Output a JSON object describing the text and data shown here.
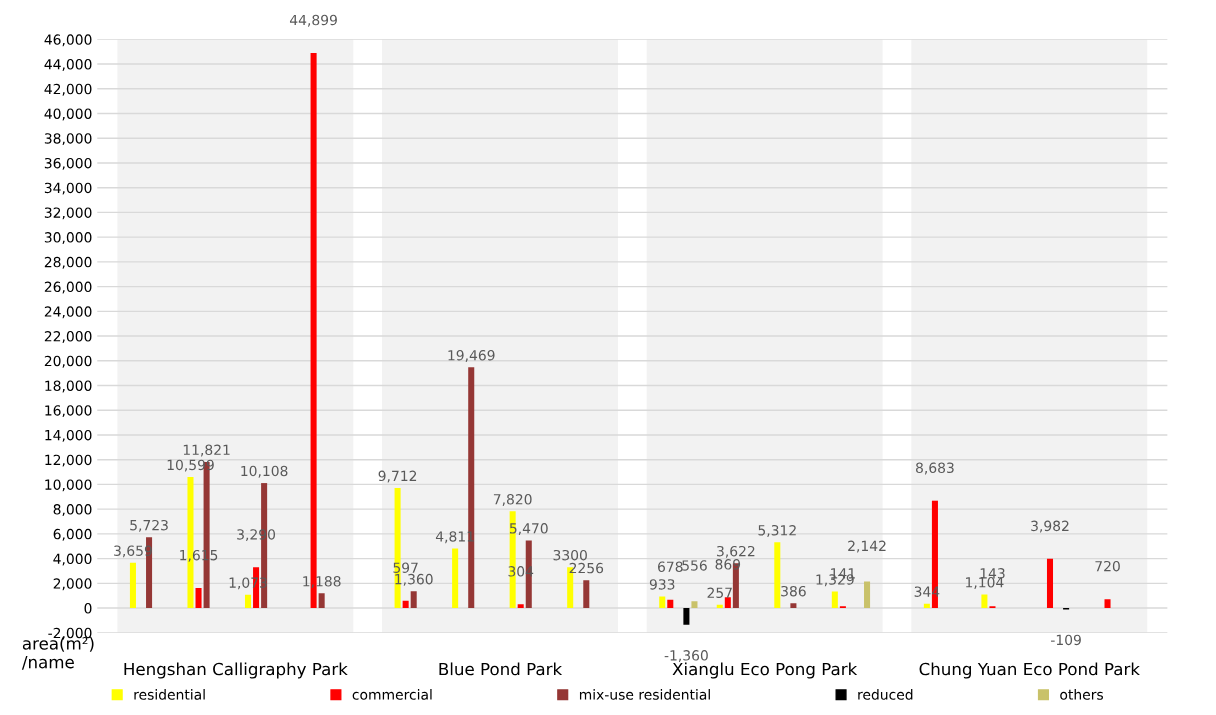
{
  "chart_data": {
    "type": "bar",
    "categories": [
      null,
      null,
      null,
      null,
      null,
      null,
      null,
      null,
      null,
      null,
      null,
      null,
      null,
      null,
      null,
      null
    ],
    "ylabel": "area(m²)\n/name",
    "ylim": [
      -2000,
      46000
    ],
    "yticks": [
      {
        "value": -2000,
        "label": "-2,000"
      },
      0,
      {
        "value": 2000,
        "label": "2,000"
      },
      {
        "value": 4000,
        "label": "4,000"
      },
      {
        "value": 6000,
        "label": "6,000"
      },
      {
        "value": 8000,
        "label": "8,000"
      },
      {
        "value": 10000,
        "label": "10,000"
      },
      {
        "value": 12000,
        "label": "12,000"
      },
      {
        "value": 14000,
        "label": "14,000"
      },
      {
        "value": 16000,
        "label": "16,000"
      },
      {
        "value": 18000,
        "label": "18,000"
      },
      {
        "value": 20000,
        "label": "20,000"
      },
      {
        "value": 22000,
        "label": "22,000"
      },
      {
        "value": 24000,
        "label": "24,000"
      },
      {
        "value": 26000,
        "label": "26,000"
      },
      {
        "value": 28000,
        "label": "28,000"
      },
      {
        "value": 30000,
        "label": "30,000"
      },
      {
        "value": 32000,
        "label": "32,000"
      },
      {
        "value": 34000,
        "label": "34,000"
      },
      {
        "value": 36000,
        "label": "36,000"
      },
      {
        "value": 38000,
        "label": "38,000"
      },
      {
        "value": 40000,
        "label": "40,000"
      },
      {
        "value": 42000,
        "label": "42,000"
      },
      {
        "value": 44000,
        "label": "44,000"
      },
      {
        "value": 46000,
        "label": "46,000"
      }
    ],
    "grid": "y",
    "legend": "bottom",
    "annotations": [
      "Hengshan Calligraphy Park",
      "Blue Pond Park",
      "Xianglu Eco Pong Park",
      "Chung Yuan Eco Pond Park"
    ],
    "series": [
      {
        "name": "residential",
        "color": "#ffff00",
        "values": [
          3659,
          10599,
          1073,
          null,
          9712,
          4811,
          7820,
          3300,
          933,
          257,
          5312,
          1329,
          344,
          1104,
          null,
          null
        ],
        "value_labels": [
          "3,659",
          "10,599",
          "1,073",
          null,
          "9,712",
          "4,811",
          "7,820",
          "3300",
          "933",
          "257",
          "5,312",
          "1,329",
          "344",
          "1,104",
          null,
          null
        ]
      },
      {
        "name": "commercial",
        "color": "#ff0000",
        "values": [
          null,
          1615,
          3290,
          44899,
          597,
          null,
          304,
          null,
          678,
          869,
          null,
          141,
          8683,
          143,
          3982,
          720
        ],
        "value_labels": [
          null,
          "1,615",
          "3,290",
          "44,899",
          "597",
          null,
          "304",
          null,
          "678",
          "869",
          null,
          "141",
          "8,683",
          "143",
          "3,982",
          "720"
        ]
      },
      {
        "name": "mix-use residential",
        "color": "#953735",
        "values": [
          5723,
          11821,
          10108,
          1188,
          1360,
          19469,
          5470,
          2256,
          null,
          3622,
          386,
          null,
          null,
          null,
          null,
          null
        ],
        "value_labels": [
          "5,723",
          "11,821",
          "10,108",
          "1,188",
          "1,360",
          "19,469",
          "5,470",
          "2256",
          null,
          "3,622",
          "386",
          null,
          null,
          null,
          null,
          null
        ]
      },
      {
        "name": "reduced",
        "color": "#000000",
        "values": [
          null,
          null,
          null,
          null,
          null,
          null,
          null,
          null,
          -1360,
          null,
          null,
          null,
          null,
          null,
          -109,
          null
        ],
        "value_labels": [
          null,
          null,
          null,
          null,
          null,
          null,
          null,
          null,
          "-1,360",
          null,
          null,
          null,
          null,
          null,
          "-109",
          null
        ]
      },
      {
        "name": "others",
        "color": "#c9c26a",
        "values": [
          null,
          null,
          null,
          null,
          null,
          null,
          null,
          null,
          556,
          null,
          null,
          2142,
          null,
          null,
          null,
          null
        ],
        "value_labels": [
          null,
          null,
          null,
          null,
          null,
          null,
          null,
          null,
          "556",
          null,
          null,
          "2,142",
          null,
          null,
          null,
          null
        ]
      }
    ]
  }
}
